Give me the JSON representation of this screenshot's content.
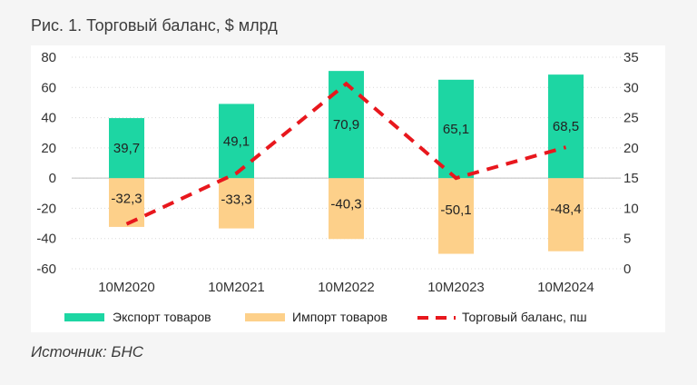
{
  "caption": "Рис. 1. Торговый баланс, $ млрд",
  "source": "Источник: БНС",
  "colors": {
    "export": "#1dd6a3",
    "import": "#fdd08a",
    "balance": "#e8171d"
  },
  "chart_data": {
    "type": "bar",
    "categories": [
      "10M2020",
      "10M2021",
      "10M2022",
      "10M2023",
      "10M2024"
    ],
    "series": [
      {
        "name": "Экспорт товаров",
        "kind": "bar",
        "axis": "left",
        "values": [
          39.7,
          49.1,
          70.9,
          65.1,
          68.5
        ],
        "labels": [
          "39,7",
          "49,1",
          "70,9",
          "65,1",
          "68,5"
        ]
      },
      {
        "name": "Импорт товаров",
        "kind": "bar",
        "axis": "left",
        "values": [
          -32.3,
          -33.3,
          -40.3,
          -50.1,
          -48.4
        ],
        "labels": [
          "-32,3",
          "-33,3",
          "-40,3",
          "-50,1",
          "-48,4"
        ]
      },
      {
        "name": "Торговый баланс, пш",
        "kind": "line",
        "style": "dashed",
        "axis": "right",
        "values": [
          7.4,
          15.8,
          30.6,
          15.0,
          20.1
        ]
      }
    ],
    "y_left": {
      "ylim": [
        -60,
        80
      ],
      "ticks": [
        "80",
        "60",
        "40",
        "20",
        "0",
        "-20",
        "-40",
        "-60"
      ]
    },
    "y_right": {
      "ylim": [
        0,
        35
      ],
      "ticks": [
        "35",
        "30",
        "25",
        "20",
        "15",
        "10",
        "5",
        "0"
      ]
    },
    "grid": true,
    "legend_position": "bottom"
  }
}
